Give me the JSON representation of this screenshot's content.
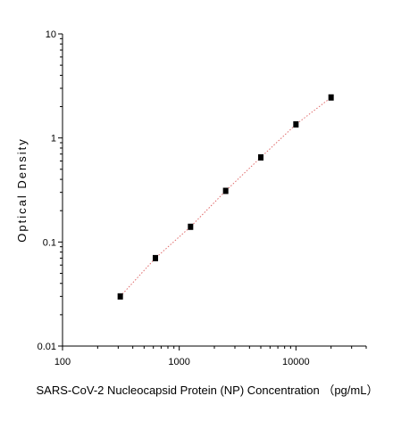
{
  "chart_data": {
    "type": "scatter",
    "title": "",
    "xlabel": "SARS-CoV-2 Nucleocapsid Protein (NP) Concentration （pg/mL）",
    "ylabel": "Optical Density",
    "x_scale": "log",
    "y_scale": "log",
    "xlim": [
      100,
      40000
    ],
    "ylim": [
      0.01,
      10
    ],
    "x_ticks": [
      100,
      1000,
      10000
    ],
    "x_tick_labels": [
      "100",
      "1000",
      "10000"
    ],
    "y_ticks": [
      0.01,
      0.1,
      1,
      10
    ],
    "y_tick_labels": [
      "0.01",
      "0.1",
      "1",
      "10"
    ],
    "grid": false,
    "legend": "none",
    "fit_line": {
      "style": "dotted",
      "color": "#e06a6a"
    },
    "marker_color": "#000000",
    "series": [
      {
        "x": [
          312.5,
          625,
          1250,
          2500,
          5000,
          10000,
          20000
        ],
        "y": [
          0.03,
          0.07,
          0.14,
          0.31,
          0.65,
          1.35,
          2.45
        ]
      }
    ]
  }
}
